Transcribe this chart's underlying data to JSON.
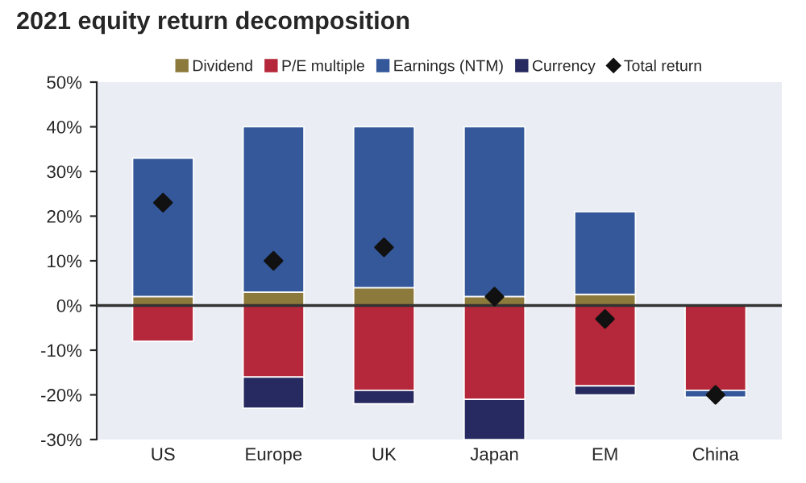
{
  "chart_data": {
    "type": "bar",
    "title": "2021 equity return decomposition",
    "stacked": true,
    "categories": [
      "US",
      "Europe",
      "UK",
      "Japan",
      "EM",
      "China"
    ],
    "series": [
      {
        "name": "Dividend",
        "color": "#8c7a3c",
        "values": [
          2,
          3,
          4,
          2,
          2.5,
          null
        ]
      },
      {
        "name": "P/E multiple",
        "color": "#b5273a",
        "values": [
          -8,
          -16,
          -19,
          -21,
          -18,
          -19
        ]
      },
      {
        "name": "Earnings (NTM)",
        "color": "#34589a",
        "values": [
          31,
          37,
          36,
          38,
          18.5,
          -1.5
        ]
      },
      {
        "name": "Currency",
        "color": "#262a60",
        "values": [
          null,
          -7,
          -3,
          -9,
          -2,
          null
        ]
      },
      {
        "name": "Total return",
        "type": "scatter",
        "color": "#111111",
        "marker": "diamond",
        "values": [
          23,
          10,
          13,
          2,
          -3,
          -20
        ]
      }
    ],
    "ylim": [
      -30,
      50
    ],
    "yticks": [
      {
        "value": -30,
        "label": "-30%"
      },
      {
        "value": -20,
        "label": "-20%"
      },
      {
        "value": -10,
        "label": "-10%"
      },
      {
        "value": 0,
        "label": "0%"
      },
      {
        "value": 10,
        "label": "10%"
      },
      {
        "value": 20,
        "label": "20%"
      },
      {
        "value": 30,
        "label": "30%"
      },
      {
        "value": 40,
        "label": "40%"
      },
      {
        "value": 50,
        "label": "50%"
      }
    ],
    "ref_lines": [
      {
        "axis": "y",
        "value": 0,
        "color": "#333333",
        "line_style": "solid"
      }
    ],
    "legend": "top"
  }
}
